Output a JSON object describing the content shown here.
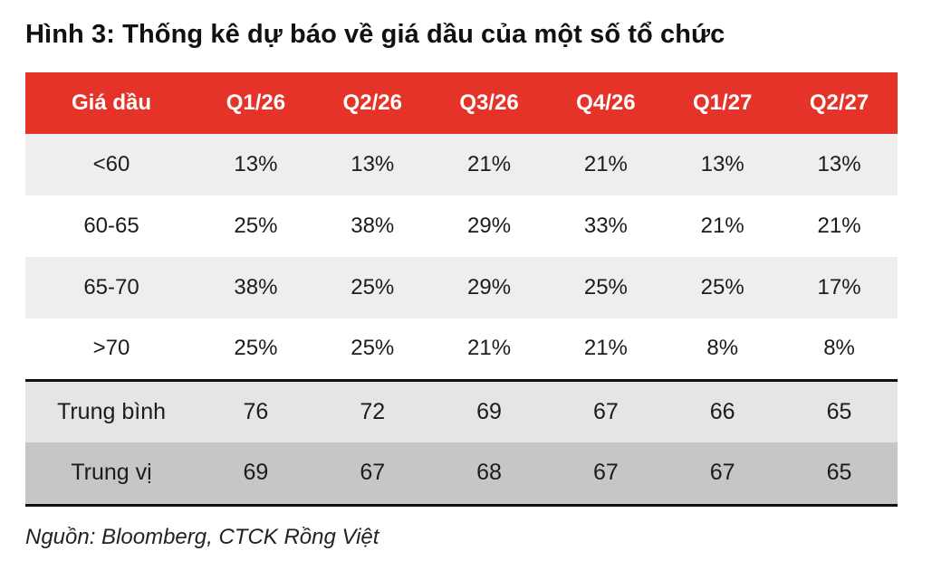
{
  "figure": {
    "title": "Hình 3: Thống kê dự báo về giá dầu của một số tổ chức",
    "source": "Nguồn: Bloomberg, CTCK Rồng Việt"
  },
  "table": {
    "headers": [
      "Giá dầu",
      "Q1/26",
      "Q2/26",
      "Q3/26",
      "Q4/26",
      "Q1/27",
      "Q2/27"
    ],
    "rows": [
      {
        "label": "<60",
        "values": [
          "13%",
          "13%",
          "21%",
          "21%",
          "13%",
          "13%"
        ]
      },
      {
        "label": "60-65",
        "values": [
          "25%",
          "38%",
          "29%",
          "33%",
          "21%",
          "21%"
        ]
      },
      {
        "label": "65-70",
        "values": [
          "38%",
          "25%",
          "29%",
          "25%",
          "25%",
          "17%"
        ]
      },
      {
        "label": ">70",
        "values": [
          "25%",
          "25%",
          "21%",
          "21%",
          "8%",
          "8%"
        ]
      }
    ],
    "summary": [
      {
        "label": "Trung bình",
        "values": [
          "76",
          "72",
          "69",
          "67",
          "66",
          "65"
        ]
      },
      {
        "label": "Trung vị",
        "values": [
          "69",
          "67",
          "68",
          "67",
          "67",
          "65"
        ]
      }
    ]
  },
  "colors": {
    "header_bg": "#e63329",
    "band_light": "#eeeeee",
    "summary_avg": "#e5e5e5",
    "summary_median": "#c6c6c6"
  }
}
